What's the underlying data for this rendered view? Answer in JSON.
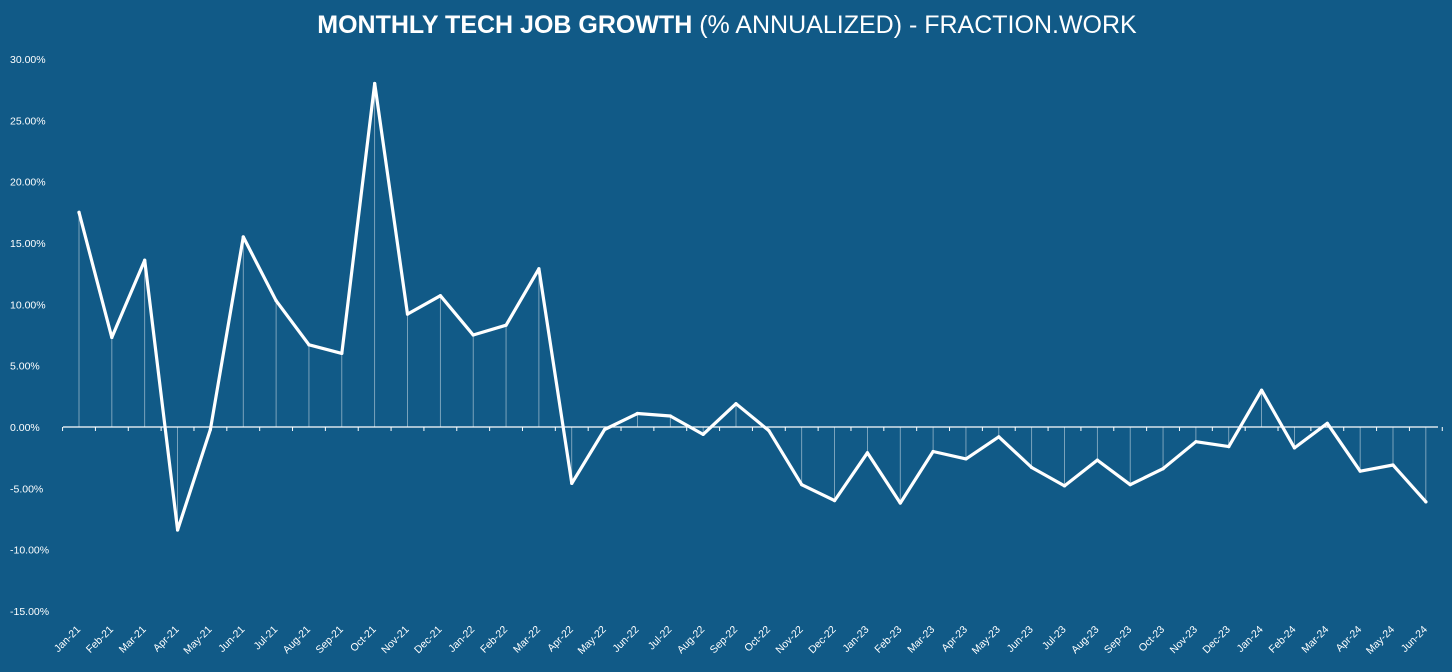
{
  "chart_data": {
    "type": "line",
    "title_bold": "MONTHLY TECH JOB GROWTH",
    "title_rest": " (% ANNUALIZED) - FRACTION.WORK",
    "xlabel": "",
    "ylabel": "",
    "ylim": [
      -15,
      30
    ],
    "y_ticks": [
      30,
      25,
      20,
      15,
      10,
      5,
      0,
      -5,
      -10,
      -15
    ],
    "y_tick_labels": [
      "30.00%",
      "25.00%",
      "20.00%",
      "15.00%",
      "10.00%",
      "5.00%",
      "0.00%",
      "-5.00%",
      "-10.00%",
      "-15.00%"
    ],
    "categories": [
      "Jan-21",
      "Feb-21",
      "Mar-21",
      "Apr-21",
      "May-21",
      "Jun-21",
      "Jul-21",
      "Aug-21",
      "Sep-21",
      "Oct-21",
      "Nov-21",
      "Dec-21",
      "Jan-22",
      "Feb-22",
      "Mar-22",
      "Apr-22",
      "May-22",
      "Jun-22",
      "Jul-22",
      "Aug-22",
      "Sep-22",
      "Oct-22",
      "Nov-22",
      "Dec-22",
      "Jan-23",
      "Feb-23",
      "Mar-23",
      "Apr-23",
      "May-23",
      "Jun-23",
      "Jul-23",
      "Aug-23",
      "Sep-23",
      "Oct-23",
      "Nov-23",
      "Dec-23",
      "Jan-24",
      "Feb-24",
      "Mar-24",
      "Apr-24",
      "May-24",
      "Jun-24"
    ],
    "series": [
      {
        "name": "Monthly Tech Job Growth",
        "values": [
          17.5,
          7.3,
          13.6,
          -8.4,
          -0.2,
          15.5,
          10.3,
          6.7,
          6.0,
          28.0,
          9.2,
          10.7,
          7.5,
          8.3,
          12.9,
          -4.6,
          -0.2,
          1.1,
          0.9,
          -0.6,
          1.9,
          -0.3,
          -4.7,
          -6.0,
          -2.1,
          -6.2,
          -2.0,
          -2.6,
          -0.8,
          -3.3,
          -4.8,
          -2.7,
          -4.7,
          -3.4,
          -1.2,
          -1.6,
          3.0,
          -1.7,
          0.3,
          -3.6,
          -3.1,
          -6.1
        ]
      }
    ],
    "colors": {
      "background": "#115a87",
      "line": "#ffffff"
    }
  }
}
